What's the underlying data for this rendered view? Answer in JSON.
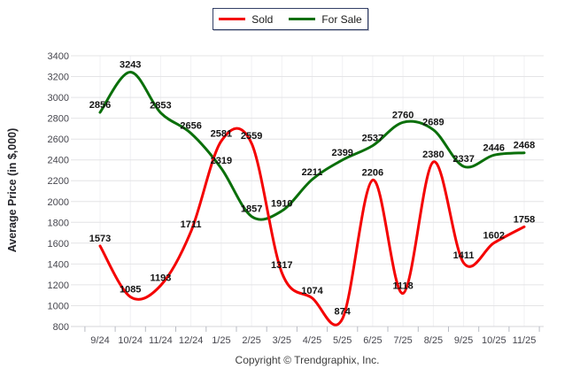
{
  "chart_data": {
    "type": "line",
    "x": [
      "9/24",
      "10/24",
      "11/24",
      "12/24",
      "1/25",
      "2/25",
      "3/25",
      "4/25",
      "5/25",
      "6/25",
      "7/25",
      "8/25",
      "9/25",
      "10/25",
      "11/25"
    ],
    "series": [
      {
        "name": "Sold",
        "color": "#f40000",
        "values": [
          1573,
          1085,
          1193,
          1711,
          2581,
          2559,
          1317,
          1074,
          874,
          2206,
          1118,
          2380,
          1411,
          1602,
          1758
        ]
      },
      {
        "name": "For Sale",
        "color": "#0a6f0a",
        "values": [
          2856,
          3243,
          2853,
          2656,
          2319,
          1857,
          1910,
          2211,
          2399,
          2537,
          2760,
          2689,
          2337,
          2446,
          2468
        ]
      }
    ],
    "title": "",
    "xlabel": "",
    "ylabel": "Average Price (in $,000)",
    "ylim": [
      800,
      3400
    ],
    "ytick_step": 200,
    "grid": true,
    "smooth": true,
    "data_labels": true,
    "legend_position": "top-center",
    "colors": {
      "grid_horizontal": "#e4e4e6",
      "grid_vertical": "#f0f0f3",
      "axis_tick": "#b9bcc4",
      "tick_label": "#47474f",
      "data_label": "#141414",
      "legend_border": "#333f66"
    }
  },
  "footer": {
    "copyright": "Copyright © Trendgraphix, Inc."
  }
}
